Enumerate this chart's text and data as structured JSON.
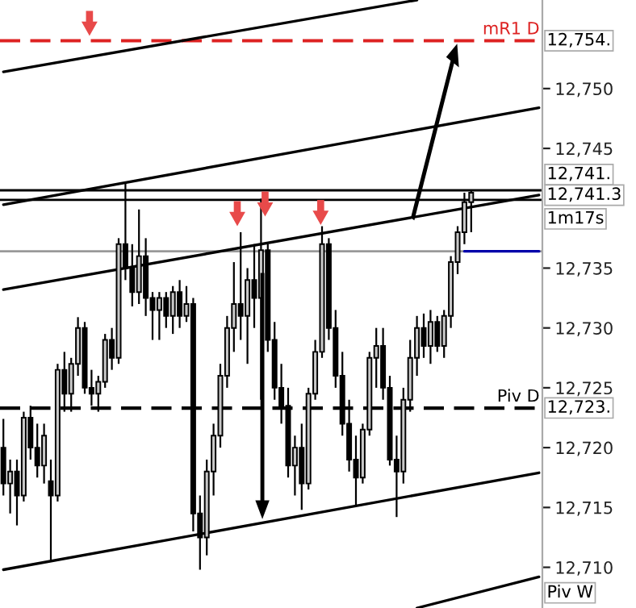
{
  "chart_data": {
    "type": "candlestick",
    "color": "#000000",
    "categories": [
      null,
      null,
      null,
      null,
      null,
      null,
      null,
      null,
      null,
      null,
      null,
      null,
      null,
      null,
      null,
      null,
      null,
      null,
      null,
      null,
      null,
      null,
      null,
      null,
      null,
      null,
      null,
      null,
      null,
      null,
      null,
      null,
      null,
      null,
      null,
      null,
      null,
      null,
      null,
      null,
      null,
      null,
      null,
      null,
      null,
      null,
      null,
      null,
      null,
      null,
      null,
      null,
      null,
      null,
      null,
      null,
      null,
      null,
      null,
      null,
      null,
      null,
      null,
      null,
      null,
      null,
      null,
      null,
      null,
      null,
      null,
      null,
      null,
      null,
      null,
      null,
      null,
      null,
      null,
      null
    ],
    "ohlc": [
      [
        12720,
        12722.4,
        12716,
        12717
      ],
      [
        12717,
        12719,
        12714.5,
        12718
      ],
      [
        12718,
        12719,
        12713.5,
        12716
      ],
      [
        12716,
        12723,
        12715.5,
        12722.5
      ],
      [
        12722.5,
        12723.5,
        12719,
        12720
      ],
      [
        12720,
        12722,
        12717.5,
        12718.5
      ],
      [
        12718.5,
        12722,
        12717,
        12721
      ],
      [
        12717.2,
        12719,
        12710.6,
        12716
      ],
      [
        12716,
        12727,
        12715.5,
        12726.5
      ],
      [
        12726.5,
        12728,
        12723,
        12724.5
      ],
      [
        12724.5,
        12727.5,
        12723,
        12727
      ],
      [
        12727,
        12730.9,
        12726,
        12730
      ],
      [
        12730,
        12730.5,
        12724.5,
        12725
      ],
      [
        12725,
        12726.5,
        12723.5,
        12724.5
      ],
      [
        12724.5,
        12726,
        12723,
        12725.5
      ],
      [
        12725.5,
        12729.5,
        12725,
        12729
      ],
      [
        12729,
        12730,
        12726.5,
        12727.5
      ],
      [
        12727.5,
        12737.5,
        12727,
        12737
      ],
      [
        12737,
        12742.2,
        12734,
        12735
      ],
      [
        12735,
        12737,
        12731.8,
        12733
      ],
      [
        12733,
        12739.9,
        12732,
        12736
      ],
      [
        12736,
        12737.5,
        12731,
        12732.5
      ],
      [
        12732.5,
        12733,
        12729,
        12731.5
      ],
      [
        12731.5,
        12733,
        12729,
        12732.5
      ],
      [
        12732.5,
        12733,
        12730,
        12731
      ],
      [
        12731,
        12733.5,
        12729.5,
        12733
      ],
      [
        12733,
        12734,
        12730,
        12731
      ],
      [
        12731,
        12733.5,
        12730.5,
        12732
      ],
      [
        12732,
        12732.5,
        12713,
        12714.5
      ],
      [
        12714.5,
        12716,
        12709.8,
        12712.5
      ],
      [
        12712.5,
        12719,
        12711,
        12718
      ],
      [
        12718,
        12722,
        12716,
        12721
      ],
      [
        12721,
        12727,
        12720,
        12726
      ],
      [
        12726,
        12731,
        12725,
        12730
      ],
      [
        12730,
        12735.5,
        12728,
        12732
      ],
      [
        12732,
        12738,
        12729,
        12731
      ],
      [
        12731,
        12735,
        12727,
        12734
      ],
      [
        12734,
        12737,
        12730,
        12732.5
      ],
      [
        12732.5,
        12740.8,
        12724,
        12736.5
      ],
      [
        12736.5,
        12737,
        12728,
        12729
      ],
      [
        12729,
        12730.5,
        12724,
        12725
      ],
      [
        12725,
        12727,
        12722,
        12723.5
      ],
      [
        12723.5,
        12725,
        12717.5,
        12718.5
      ],
      [
        12718.5,
        12721,
        12716,
        12720
      ],
      [
        12720,
        12722,
        12714.8,
        12717
      ],
      [
        12717,
        12725,
        12716.5,
        12724.5
      ],
      [
        12724.5,
        12729,
        12724,
        12728
      ],
      [
        12728,
        12738.5,
        12727.5,
        12737
      ],
      [
        12737,
        12737.5,
        12729,
        12730
      ],
      [
        12730,
        12731.5,
        12725,
        12726
      ],
      [
        12726,
        12728,
        12721,
        12722
      ],
      [
        12722,
        12724,
        12718,
        12719
      ],
      [
        12719,
        12721,
        12715.2,
        12717.5
      ],
      [
        12717.5,
        12722,
        12717,
        12721.5
      ],
      [
        12721.5,
        12728,
        12721,
        12727.5
      ],
      [
        12727.5,
        12730,
        12725,
        12728.5
      ],
      [
        12728.5,
        12730,
        12724,
        12725
      ],
      [
        12725,
        12726,
        12718.5,
        12719
      ],
      [
        12719,
        12721,
        12714.2,
        12718
      ],
      [
        12718,
        12725,
        12717,
        12724
      ],
      [
        12724,
        12729,
        12723,
        12727.5
      ],
      [
        12727.5,
        12731,
        12726,
        12730
      ],
      [
        12730,
        12731.2,
        12727.5,
        12728.5
      ],
      [
        12728.5,
        12731.5,
        12727,
        12730.5
      ],
      [
        12730.5,
        12731,
        12728,
        12728.5
      ],
      [
        12728.5,
        12731.5,
        12727.5,
        12731
      ],
      [
        12731,
        12736,
        12730,
        12735.5
      ],
      [
        12735.5,
        12738.5,
        12734.5,
        12738
      ],
      [
        12738,
        12741.3,
        12737,
        12740.5
      ],
      [
        12740.5,
        12741.5,
        12738,
        12741.3
      ],
      null,
      null,
      null,
      null,
      null,
      null,
      null,
      null,
      null,
      null
    ],
    "series": [
      {
        "type": "line",
        "color": "#000000",
        "values": [
          12751.4,
          null,
          null,
          null,
          null,
          null,
          null,
          null,
          null,
          null,
          null,
          null,
          null,
          null,
          null,
          null,
          null,
          null,
          null,
          null,
          null,
          null,
          null,
          null,
          null,
          null,
          null,
          null,
          null,
          null,
          null,
          null,
          null,
          null,
          null,
          null,
          null,
          null,
          null,
          null,
          null,
          null,
          null,
          null,
          null,
          null,
          null,
          null,
          null,
          null,
          null,
          null,
          null,
          null,
          null,
          null,
          null,
          null,
          null,
          null,
          null,
          12757.4,
          null,
          null,
          null,
          null,
          null,
          null,
          null,
          null,
          null,
          null,
          null,
          null,
          null,
          null,
          null,
          null,
          null,
          null
        ]
      },
      {
        "type": "line",
        "color": "#000000",
        "values": [
          12740.3,
          null,
          null,
          null,
          null,
          null,
          null,
          null,
          null,
          null,
          null,
          null,
          null,
          null,
          null,
          null,
          null,
          null,
          null,
          null,
          null,
          null,
          null,
          null,
          null,
          null,
          null,
          null,
          null,
          null,
          null,
          null,
          null,
          null,
          null,
          null,
          null,
          null,
          null,
          null,
          null,
          null,
          null,
          null,
          null,
          null,
          null,
          null,
          null,
          null,
          null,
          null,
          null,
          null,
          null,
          null,
          null,
          null,
          null,
          null,
          null,
          null,
          null,
          null,
          null,
          null,
          null,
          null,
          null,
          null,
          null,
          null,
          null,
          null,
          null,
          null,
          null,
          null,
          null,
          12748.4
        ]
      },
      {
        "type": "line",
        "color": "#000000",
        "values": [
          12733.2,
          null,
          null,
          null,
          null,
          null,
          null,
          null,
          null,
          null,
          null,
          null,
          null,
          null,
          null,
          null,
          null,
          null,
          null,
          null,
          null,
          null,
          null,
          null,
          null,
          null,
          null,
          null,
          null,
          null,
          null,
          null,
          null,
          null,
          null,
          null,
          null,
          null,
          null,
          null,
          null,
          null,
          null,
          null,
          null,
          null,
          null,
          null,
          null,
          null,
          null,
          null,
          null,
          null,
          null,
          null,
          null,
          null,
          null,
          null,
          null,
          null,
          null,
          null,
          null,
          null,
          null,
          null,
          null,
          null,
          null,
          null,
          null,
          null,
          null,
          null,
          null,
          null,
          null,
          12741.1
        ]
      },
      {
        "type": "line",
        "color": "#000000",
        "values": [
          12709.8,
          null,
          null,
          null,
          null,
          null,
          null,
          null,
          null,
          null,
          null,
          null,
          null,
          null,
          null,
          null,
          null,
          null,
          null,
          null,
          null,
          null,
          null,
          null,
          null,
          null,
          null,
          null,
          null,
          null,
          null,
          null,
          null,
          null,
          null,
          null,
          null,
          null,
          null,
          null,
          null,
          null,
          null,
          null,
          null,
          null,
          null,
          null,
          null,
          null,
          null,
          null,
          null,
          null,
          null,
          null,
          null,
          null,
          null,
          null,
          null,
          null,
          null,
          null,
          null,
          null,
          null,
          null,
          null,
          null,
          null,
          null,
          null,
          null,
          null,
          null,
          null,
          null,
          null,
          12717.9
        ]
      },
      {
        "type": "line",
        "color": "#000000",
        "values": [
          null,
          null,
          null,
          null,
          null,
          null,
          null,
          null,
          null,
          null,
          null,
          null,
          null,
          null,
          null,
          null,
          null,
          null,
          null,
          null,
          null,
          null,
          null,
          null,
          null,
          null,
          null,
          null,
          null,
          null,
          null,
          null,
          null,
          null,
          null,
          null,
          null,
          null,
          null,
          null,
          null,
          null,
          null,
          null,
          null,
          null,
          null,
          null,
          null,
          null,
          null,
          null,
          null,
          null,
          null,
          null,
          null,
          null,
          null,
          null,
          null,
          12706.6,
          null,
          null,
          null,
          null,
          null,
          null,
          null,
          null,
          null,
          null,
          null,
          null,
          null,
          null,
          null,
          null,
          null,
          12709.2
        ]
      },
      {
        "type": "line",
        "color": "#0000aa",
        "values": [
          null,
          null,
          null,
          null,
          null,
          null,
          null,
          null,
          null,
          null,
          null,
          null,
          null,
          null,
          null,
          null,
          null,
          null,
          null,
          null,
          null,
          null,
          null,
          null,
          null,
          null,
          null,
          null,
          null,
          null,
          null,
          null,
          null,
          null,
          null,
          null,
          null,
          null,
          null,
          null,
          null,
          null,
          null,
          null,
          null,
          null,
          null,
          null,
          null,
          null,
          null,
          null,
          null,
          null,
          null,
          null,
          null,
          null,
          null,
          null,
          null,
          null,
          null,
          null,
          null,
          null,
          null,
          null,
          12736.4,
          null,
          null,
          null,
          null,
          null,
          null,
          null,
          null,
          null,
          null,
          12736.4
        ]
      }
    ],
    "ref_lines": [
      {
        "axis": "y",
        "value": 12754,
        "label": "mR1 D",
        "color": "#dd2222",
        "line_style": "dashed"
      },
      {
        "axis": "y",
        "value": 12741.5,
        "color": "#000000",
        "line_style": "solid"
      },
      {
        "axis": "y",
        "value": 12740.7,
        "color": "#000000",
        "line_style": "solid"
      },
      {
        "axis": "y",
        "value": 12736.4,
        "color": "#999999",
        "line_style": "solid"
      },
      {
        "axis": "y",
        "value": 12723.3,
        "label": "Piv D",
        "color": "#000000",
        "line_style": "dashed"
      }
    ],
    "annotations": [
      "12,754.",
      "12,741.",
      "12,741.3",
      "1m17s",
      "12,723.",
      "Piv W"
    ],
    "ylim": [
      12706.6,
      12757.4
    ],
    "yticks": [
      {
        "value": 12710,
        "label": "12,710"
      },
      {
        "value": 12715,
        "label": "12,715"
      },
      {
        "value": 12720,
        "label": "12,720"
      },
      {
        "value": 12725,
        "label": "12,725"
      },
      {
        "value": 12730,
        "label": "12,730"
      },
      {
        "value": 12735,
        "label": "12,735"
      },
      {
        "value": 12745,
        "label": "12,745"
      },
      {
        "value": 12750,
        "label": "12,750"
      }
    ],
    "tick_labels": "y",
    "grid": false
  }
}
